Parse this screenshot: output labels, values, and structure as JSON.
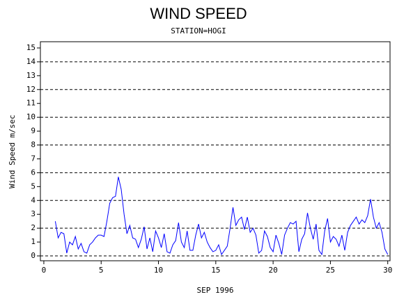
{
  "chart_data": {
    "type": "line",
    "title": "WIND SPEED",
    "subtitle": "STATION=HOGI",
    "xlabel": "SEP 1996",
    "ylabel": "Wind Speed m/sec",
    "xlim": [
      -0.3,
      30.2
    ],
    "ylim": [
      -0.35,
      15.45
    ],
    "xticks": [
      0,
      5,
      10,
      15,
      20,
      25,
      30
    ],
    "yticks": [
      0,
      1,
      2,
      3,
      4,
      5,
      6,
      7,
      8,
      9,
      10,
      11,
      12,
      13,
      14,
      15
    ],
    "grid_lines": [
      0,
      2,
      4,
      6,
      8,
      10,
      12,
      14
    ],
    "x": [
      1,
      1.25,
      1.5,
      1.75,
      2,
      2.25,
      2.5,
      2.75,
      3,
      3.25,
      3.5,
      3.75,
      4,
      4.25,
      4.5,
      4.75,
      5,
      5.25,
      5.5,
      5.75,
      6,
      6.25,
      6.5,
      6.75,
      7,
      7.25,
      7.5,
      7.75,
      8,
      8.25,
      8.5,
      8.75,
      9,
      9.25,
      9.5,
      9.75,
      10,
      10.25,
      10.5,
      10.75,
      11,
      11.25,
      11.5,
      11.75,
      12,
      12.25,
      12.5,
      12.75,
      13,
      13.25,
      13.5,
      13.75,
      14,
      14.25,
      14.5,
      14.75,
      15,
      15.25,
      15.5,
      15.75,
      16,
      16.25,
      16.5,
      16.75,
      17,
      17.25,
      17.5,
      17.75,
      18,
      18.25,
      18.5,
      18.75,
      19,
      19.25,
      19.5,
      19.75,
      20,
      20.25,
      20.5,
      20.75,
      21,
      21.25,
      21.5,
      21.75,
      22,
      22.25,
      22.5,
      22.75,
      23,
      23.25,
      23.5,
      23.75,
      24,
      24.25,
      24.5,
      24.75,
      25,
      25.25,
      25.5,
      25.75,
      26,
      26.25,
      26.5,
      26.75,
      27,
      27.25,
      27.5,
      27.75,
      28,
      28.25,
      28.5,
      28.75,
      29,
      29.25,
      29.5,
      29.75,
      30
    ],
    "series": [
      {
        "name": "Wind Speed",
        "color": "#0000ff",
        "values": [
          2.5,
          1.3,
          1.7,
          1.6,
          0.2,
          1.0,
          0.8,
          1.4,
          0.5,
          0.9,
          0.3,
          0.2,
          0.8,
          1.0,
          1.3,
          1.5,
          1.5,
          1.4,
          2.5,
          3.8,
          4.2,
          4.3,
          5.7,
          4.8,
          3.0,
          1.6,
          2.2,
          1.3,
          1.2,
          0.6,
          1.2,
          2.1,
          0.5,
          1.3,
          0.3,
          1.8,
          1.3,
          0.6,
          1.6,
          0.3,
          0.2,
          0.8,
          1.1,
          2.4,
          1.0,
          0.6,
          1.8,
          0.4,
          0.4,
          1.5,
          2.3,
          1.3,
          1.7,
          1.0,
          0.6,
          0.3,
          0.4,
          0.8,
          0.1,
          0.4,
          0.7,
          2.0,
          3.5,
          2.2,
          2.6,
          2.8,
          1.9,
          2.8,
          1.7,
          2.0,
          1.5,
          0.2,
          0.4,
          1.8,
          1.4,
          0.6,
          0.3,
          1.5,
          0.9,
          0.1,
          1.5,
          2.0,
          2.4,
          2.3,
          2.5,
          0.3,
          1.2,
          1.6,
          3.1,
          2.0,
          1.2,
          2.3,
          0.4,
          0.1,
          1.8,
          2.7,
          1.0,
          1.4,
          1.2,
          0.7,
          1.5,
          0.4,
          1.7,
          2.2,
          2.5,
          2.8,
          2.3,
          2.6,
          2.4,
          2.9,
          4.1,
          2.8,
          2.0,
          2.4,
          1.7,
          0.5,
          0.1
        ]
      }
    ]
  }
}
